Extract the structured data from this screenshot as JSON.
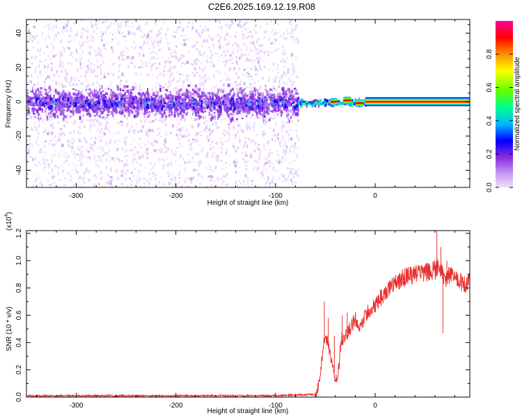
{
  "figure_title": "C2E6.2025.169.12.19.R08",
  "chart_data": [
    {
      "type": "heatmap",
      "panel": "spectrogram",
      "xlabel": "Height of straight line (km)",
      "ylabel": "Frequency (Hz)",
      "xlim": [
        -350,
        95
      ],
      "ylim": [
        -50,
        48
      ],
      "xticks": [
        -300,
        -200,
        -100,
        0
      ],
      "yticks": [
        -40,
        -20,
        0,
        20,
        40
      ],
      "noise_region": {
        "x": [
          -350,
          -78
        ],
        "y": [
          -50,
          48
        ]
      },
      "core_band_halfwidth_hz": 8,
      "tone_x_range": [
        -10,
        95
      ],
      "tone_center_hz": 0,
      "colorbar": {
        "label": "Normalized spectral amplitude",
        "ticks": [
          0.0,
          0.2,
          0.4,
          0.6,
          0.8
        ],
        "range": [
          0,
          1
        ],
        "colors": [
          "#e8d4fb",
          "#8a2be2",
          "#0000ff",
          "#00c8ff",
          "#00ff7f",
          "#7fff00",
          "#ffff00",
          "#ff8000",
          "#ff0000",
          "#ff00a0"
        ]
      }
    },
    {
      "type": "line",
      "panel": "snr",
      "xlabel": "Height of straight line (km)",
      "ylabel": "SNR (10 * v/v)",
      "yscale_label": "(x10",
      "yscale_exponent": "4",
      "xlim": [
        -350,
        95
      ],
      "ylim": [
        0,
        1.22
      ],
      "xticks": [
        -300,
        -200,
        -100,
        0
      ],
      "yticks": [
        0.0,
        0.2,
        0.4,
        0.6,
        0.8,
        1.0,
        1.2
      ],
      "color": "#e8302f",
      "series": [
        {
          "name": "SNR",
          "x": [
            -350,
            -100,
            -60,
            -56,
            -53,
            -50,
            -48,
            -45,
            -42,
            -40,
            -37,
            -34,
            -30,
            -25,
            -20,
            -15,
            -10,
            -5,
            0,
            10,
            20,
            30,
            40,
            50,
            55,
            60,
            65,
            70,
            75,
            80,
            85,
            90,
            95
          ],
          "y": [
            0.01,
            0.01,
            0.02,
            0.1,
            0.32,
            0.48,
            0.4,
            0.3,
            0.22,
            0.12,
            0.18,
            0.42,
            0.45,
            0.5,
            0.58,
            0.52,
            0.6,
            0.63,
            0.68,
            0.76,
            0.83,
            0.88,
            0.9,
            0.91,
            0.92,
            0.93,
            0.96,
            0.82,
            0.9,
            0.86,
            0.85,
            0.83,
            0.85
          ]
        }
      ],
      "spikes": [
        {
          "x": -51,
          "y": 0.7
        },
        {
          "x": -47,
          "y": 0.58
        },
        {
          "x": -41,
          "y": 0.45
        },
        {
          "x": -33,
          "y": 0.6
        },
        {
          "x": -28,
          "y": 0.62
        },
        {
          "x": 62,
          "y": 1.22
        },
        {
          "x": 66,
          "y": 1.1
        },
        {
          "x": 68,
          "y": 0.47
        },
        {
          "x": 72,
          "y": 1.0
        }
      ]
    }
  ]
}
